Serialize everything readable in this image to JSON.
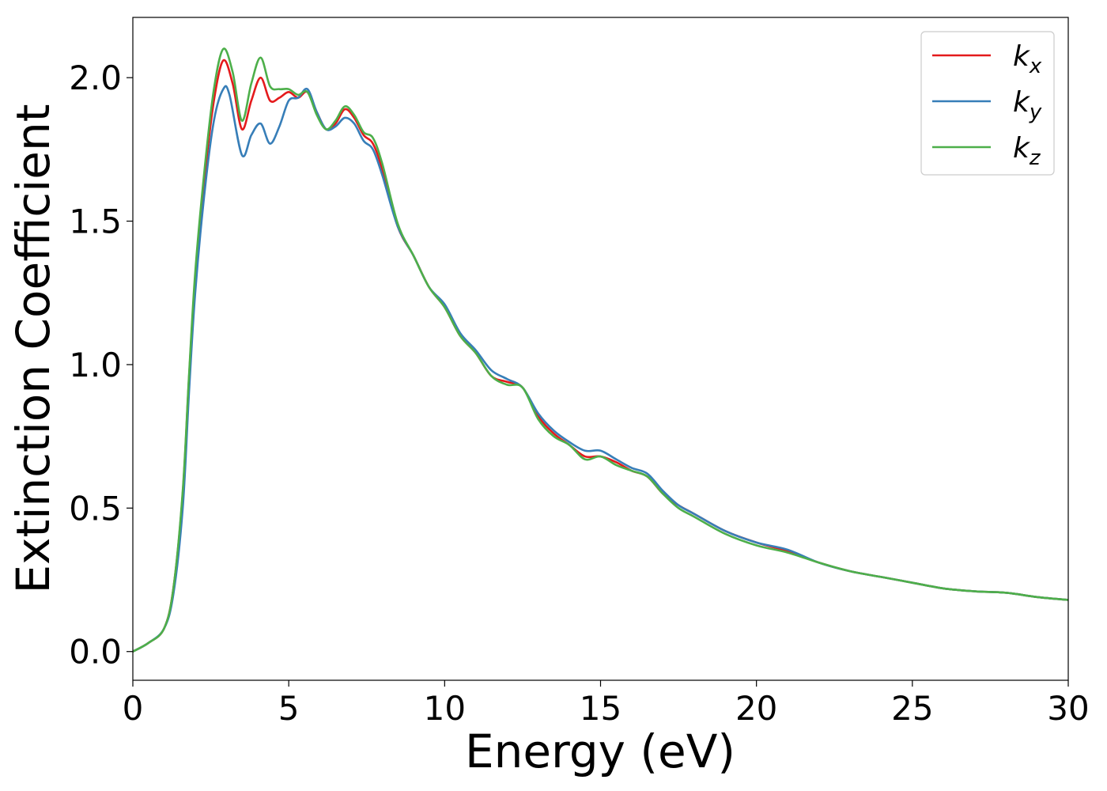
{
  "chart_data": {
    "type": "line",
    "title": "",
    "xlabel": "Energy (eV)",
    "ylabel": "Extinction Coefficient",
    "xlim": [
      0,
      30
    ],
    "ylim": [
      -0.1,
      2.21
    ],
    "xticks": [
      0,
      5,
      10,
      15,
      20,
      25,
      30
    ],
    "yticks": [
      0.0,
      0.5,
      1.0,
      1.5,
      2.0
    ],
    "xtick_labels": [
      "0",
      "5",
      "10",
      "15",
      "20",
      "25",
      "30"
    ],
    "ytick_labels": [
      "0.0",
      "0.5",
      "1.0",
      "1.5",
      "2.0"
    ],
    "grid": false,
    "legend_position": "top-right",
    "series": [
      {
        "name": "k_x",
        "label_base": "k",
        "label_sub": "x",
        "color": "#e41a1c",
        "x": [
          0,
          0.5,
          1.0,
          1.3,
          1.6,
          1.8,
          2.0,
          2.3,
          2.6,
          2.9,
          3.2,
          3.5,
          3.8,
          4.1,
          4.4,
          4.7,
          5.0,
          5.3,
          5.6,
          5.9,
          6.2,
          6.5,
          6.8,
          7.1,
          7.4,
          7.7,
          8.0,
          8.5,
          9.0,
          9.5,
          10.0,
          10.5,
          11.0,
          11.5,
          12.0,
          12.5,
          13.0,
          13.5,
          14.0,
          14.5,
          15.0,
          15.5,
          16.0,
          16.5,
          17.0,
          17.5,
          18.0,
          19.0,
          20.0,
          21.0,
          22.0,
          23.0,
          24.0,
          25.0,
          26.0,
          27.0,
          28.0,
          29.0,
          30.0
        ],
        "y": [
          0.0,
          0.03,
          0.08,
          0.22,
          0.55,
          0.95,
          1.3,
          1.65,
          1.92,
          2.06,
          1.98,
          1.82,
          1.92,
          2.0,
          1.92,
          1.93,
          1.95,
          1.93,
          1.95,
          1.88,
          1.82,
          1.84,
          1.89,
          1.86,
          1.8,
          1.77,
          1.68,
          1.48,
          1.38,
          1.27,
          1.2,
          1.1,
          1.04,
          0.96,
          0.94,
          0.92,
          0.82,
          0.76,
          0.72,
          0.68,
          0.68,
          0.66,
          0.63,
          0.61,
          0.55,
          0.51,
          0.48,
          0.42,
          0.38,
          0.35,
          0.31,
          0.28,
          0.26,
          0.24,
          0.22,
          0.21,
          0.205,
          0.19,
          0.18
        ]
      },
      {
        "name": "k_y",
        "label_base": "k",
        "label_sub": "y",
        "color": "#377eb8",
        "x": [
          0,
          0.5,
          1.0,
          1.3,
          1.6,
          1.8,
          2.0,
          2.3,
          2.6,
          2.9,
          3.1,
          3.5,
          3.8,
          4.1,
          4.4,
          4.7,
          5.0,
          5.3,
          5.6,
          5.9,
          6.2,
          6.5,
          6.8,
          7.1,
          7.4,
          7.7,
          8.0,
          8.5,
          9.0,
          9.5,
          10.0,
          10.5,
          11.0,
          11.5,
          12.0,
          12.5,
          13.0,
          13.5,
          14.0,
          14.5,
          15.0,
          15.5,
          16.0,
          16.5,
          17.0,
          17.5,
          18.0,
          19.0,
          20.0,
          21.0,
          22.0,
          23.0,
          24.0,
          25.0,
          26.0,
          27.0,
          28.0,
          29.0,
          30.0
        ],
        "y": [
          0.0,
          0.03,
          0.08,
          0.2,
          0.5,
          0.9,
          1.25,
          1.6,
          1.85,
          1.96,
          1.94,
          1.73,
          1.8,
          1.84,
          1.77,
          1.83,
          1.92,
          1.93,
          1.96,
          1.88,
          1.82,
          1.83,
          1.86,
          1.84,
          1.78,
          1.75,
          1.66,
          1.48,
          1.38,
          1.27,
          1.21,
          1.11,
          1.05,
          0.98,
          0.95,
          0.92,
          0.83,
          0.77,
          0.73,
          0.7,
          0.7,
          0.67,
          0.64,
          0.62,
          0.56,
          0.51,
          0.48,
          0.42,
          0.38,
          0.355,
          0.31,
          0.28,
          0.26,
          0.24,
          0.22,
          0.21,
          0.205,
          0.19,
          0.18
        ]
      },
      {
        "name": "k_z",
        "label_base": "k",
        "label_sub": "z",
        "color": "#4daf4a",
        "x": [
          0,
          0.5,
          1.0,
          1.3,
          1.6,
          1.8,
          2.0,
          2.3,
          2.6,
          2.9,
          3.2,
          3.5,
          3.8,
          4.1,
          4.4,
          4.7,
          5.0,
          5.3,
          5.6,
          5.9,
          6.2,
          6.5,
          6.8,
          7.1,
          7.4,
          7.7,
          8.0,
          8.5,
          9.0,
          9.5,
          10.0,
          10.5,
          11.0,
          11.5,
          12.0,
          12.5,
          13.0,
          13.5,
          14.0,
          14.5,
          15.0,
          15.5,
          16.0,
          16.5,
          17.0,
          17.5,
          18.0,
          19.0,
          20.0,
          21.0,
          22.0,
          23.0,
          24.0,
          25.0,
          26.0,
          27.0,
          28.0,
          29.0,
          30.0
        ],
        "y": [
          0.0,
          0.03,
          0.08,
          0.22,
          0.56,
          0.96,
          1.32,
          1.68,
          1.96,
          2.1,
          2.02,
          1.85,
          1.98,
          2.07,
          1.97,
          1.96,
          1.96,
          1.94,
          1.95,
          1.87,
          1.82,
          1.85,
          1.9,
          1.87,
          1.81,
          1.79,
          1.7,
          1.49,
          1.38,
          1.27,
          1.2,
          1.1,
          1.04,
          0.96,
          0.93,
          0.92,
          0.81,
          0.75,
          0.72,
          0.67,
          0.68,
          0.65,
          0.63,
          0.61,
          0.55,
          0.5,
          0.47,
          0.41,
          0.37,
          0.345,
          0.31,
          0.28,
          0.26,
          0.24,
          0.22,
          0.21,
          0.205,
          0.19,
          0.18
        ]
      }
    ]
  }
}
